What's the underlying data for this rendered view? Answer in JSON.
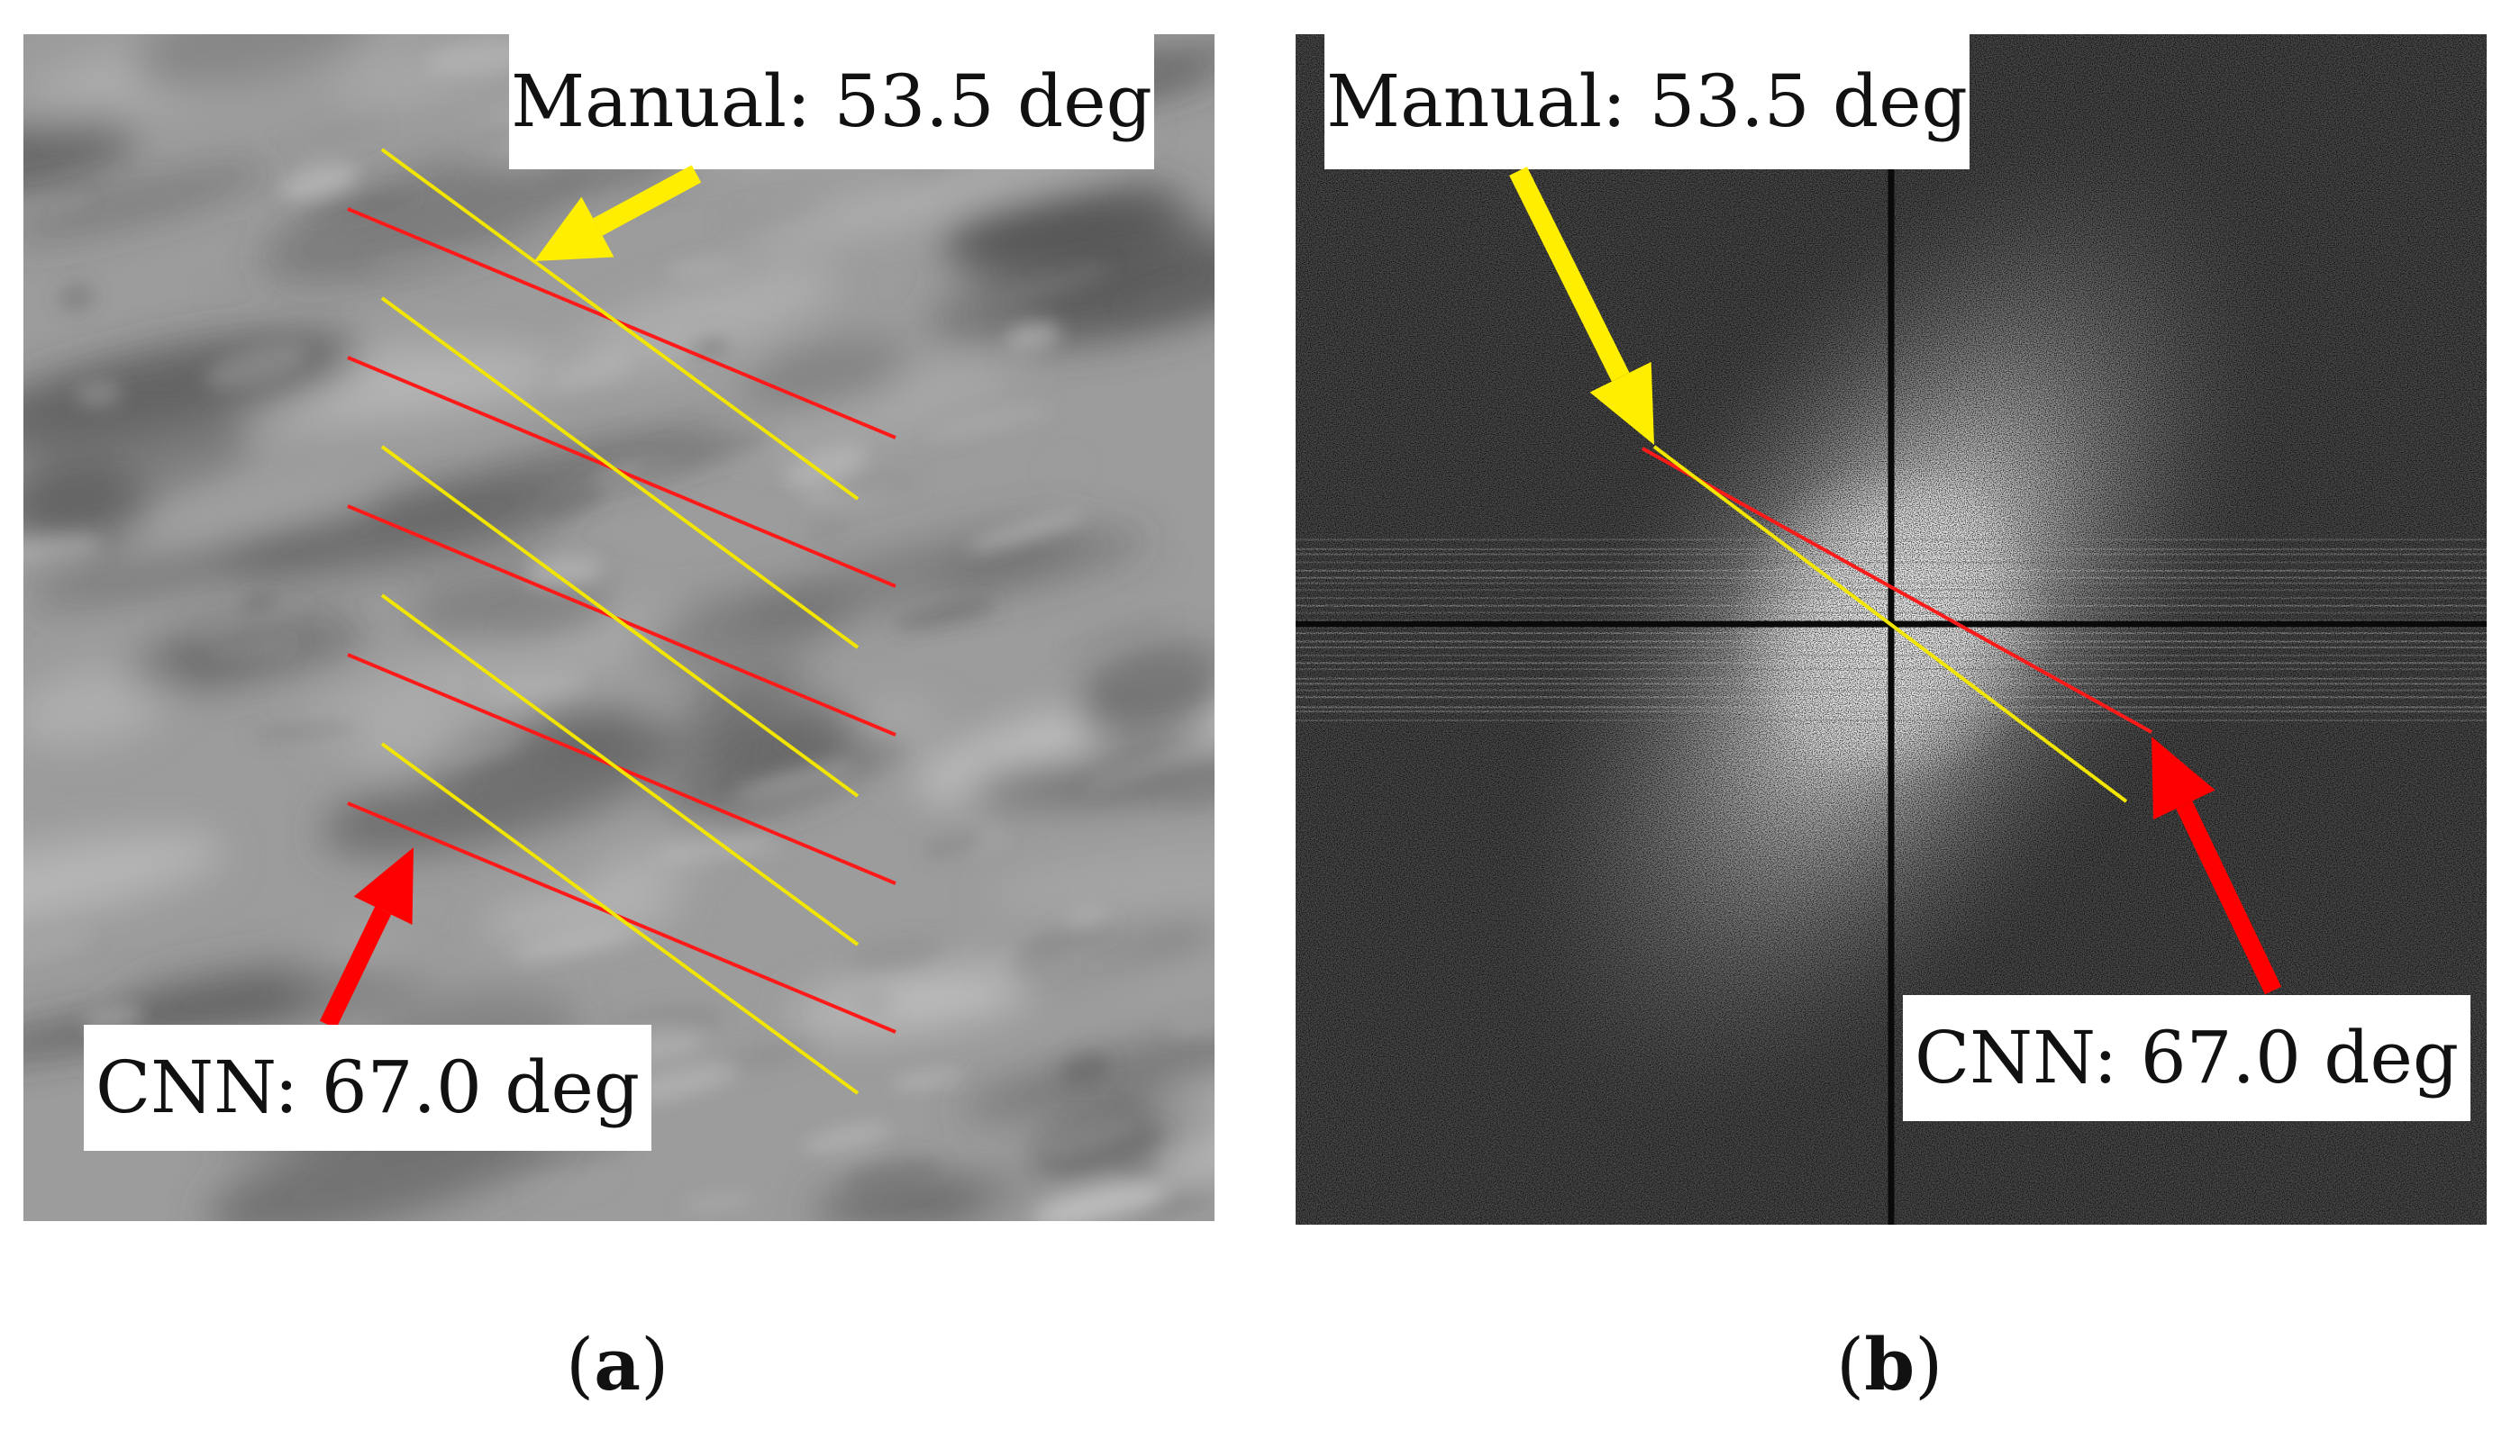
{
  "panel_a": {
    "manual_label": "Manual: 53.5 deg",
    "cnn_label": "CNN: 67.0 deg",
    "caption_open": "(",
    "caption_letter": "a",
    "caption_close": ")"
  },
  "panel_b": {
    "manual_label": "Manual: 53.5 deg",
    "cnn_label": "CNN: 67.0 deg",
    "caption_open": "(",
    "caption_letter": "b",
    "caption_close": ")"
  },
  "colors": {
    "manual": "#f2e600",
    "cnn": "#ff1a1a",
    "arrow_yellow": "#ffee00",
    "arrow_red": "#ff0000"
  }
}
